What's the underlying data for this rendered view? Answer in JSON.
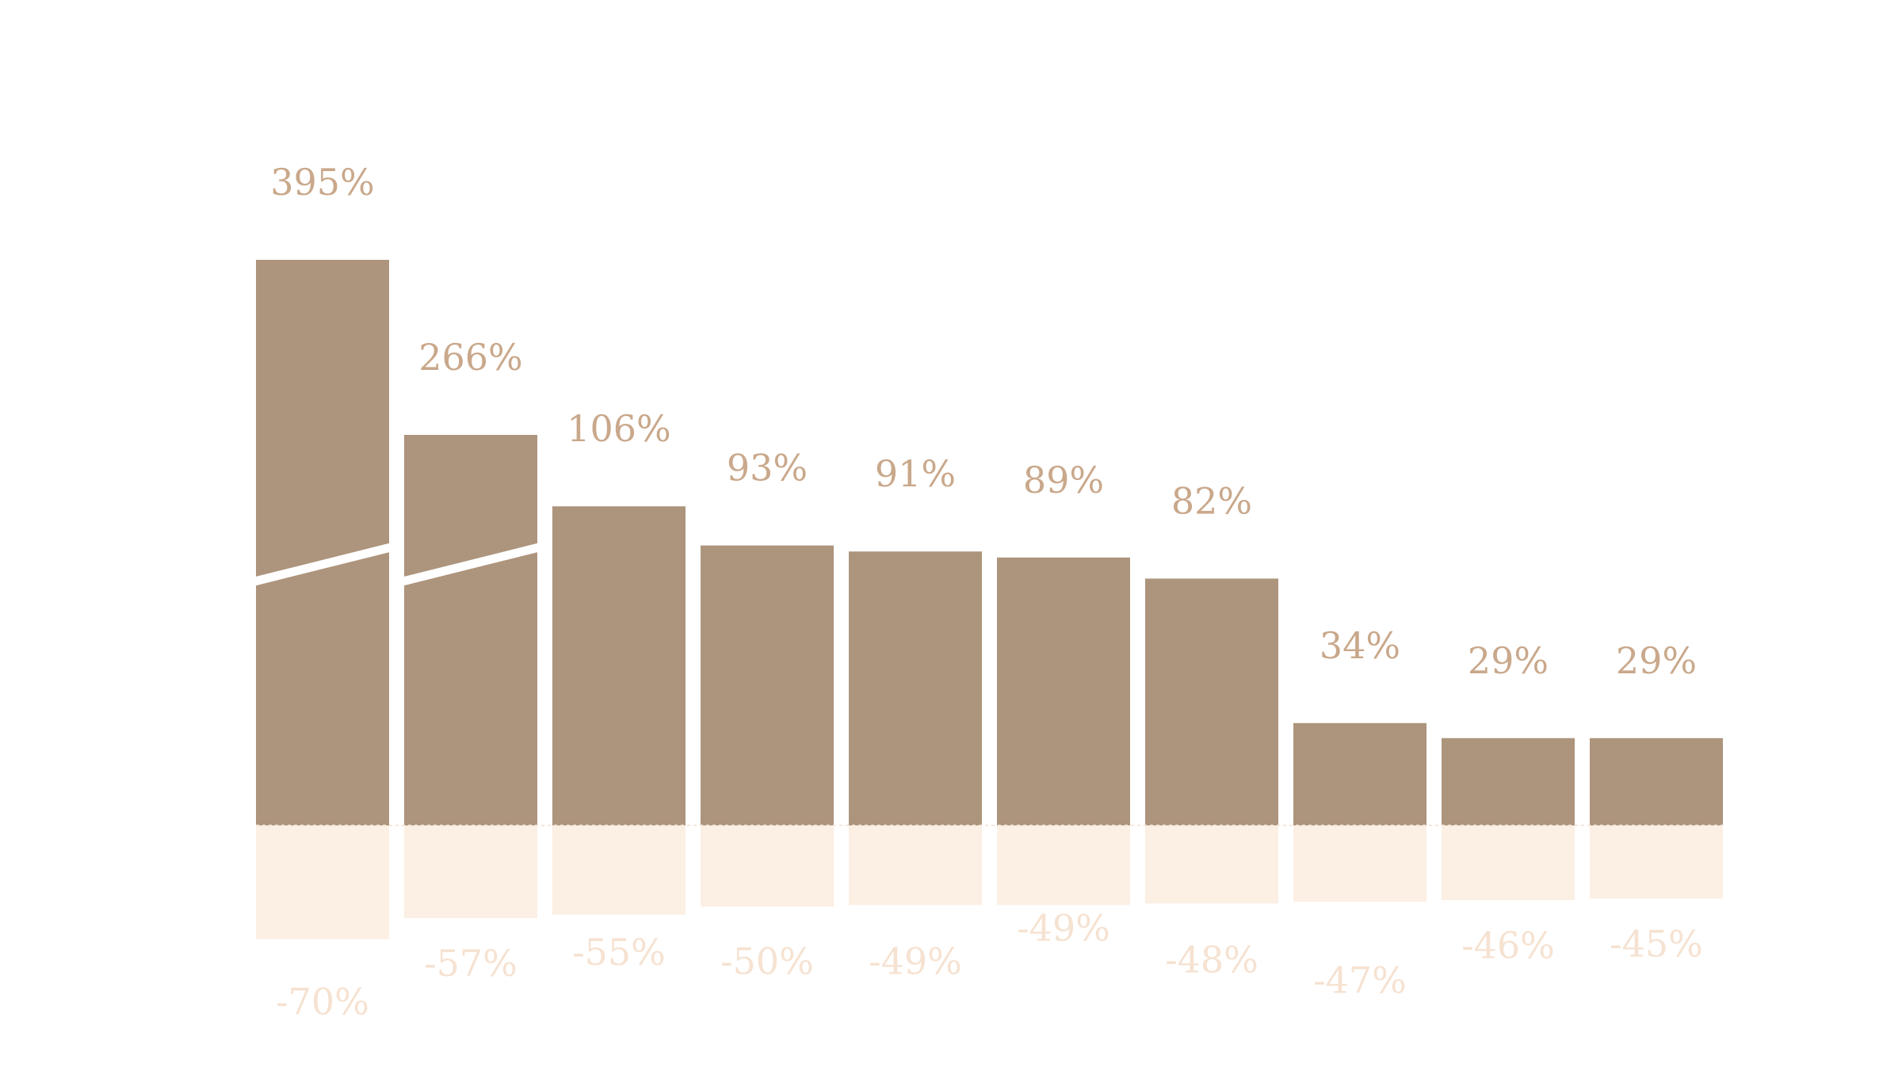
{
  "chart_data": {
    "type": "bar",
    "categories": [
      "",
      "",
      "",
      "",
      "",
      "",
      "",
      "",
      "",
      ""
    ],
    "series": [
      {
        "values": [
          395,
          266,
          106,
          93,
          91,
          89,
          82,
          34,
          29,
          29
        ]
      },
      {
        "values": [
          -70,
          -57,
          -55,
          -50,
          -49,
          -49,
          -48,
          -47,
          -46,
          -45
        ]
      }
    ],
    "positive_labels": [
      "395%",
      "266%",
      "106%",
      "93%",
      "91%",
      "89%",
      "82%",
      "34%",
      "29%",
      "29%"
    ],
    "negative_labels": [
      "-70%",
      "-57%",
      "-55%",
      "-50%",
      "-49%",
      "-49%",
      "-48%",
      "-47%",
      "-46%",
      "-45%"
    ],
    "broken_axis_bars": [
      0,
      1
    ],
    "title": "",
    "xlabel": "",
    "ylabel": "",
    "grid": false,
    "legend": "none",
    "colors": {
      "positive_bar": "#ad947c",
      "negative_bar": "#fcefe3",
      "positive_label": "#c9a88b",
      "negative_label": "#f6e2d1",
      "background": "#ffffff"
    }
  }
}
